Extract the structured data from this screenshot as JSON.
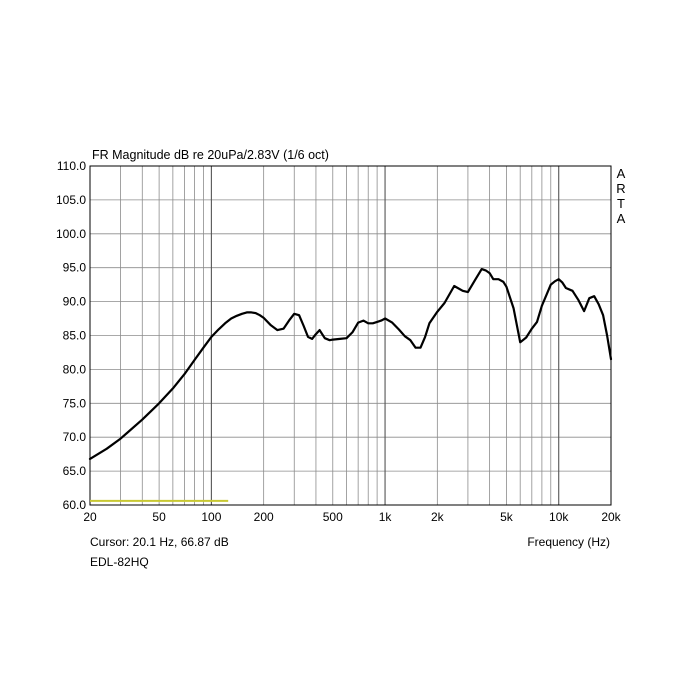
{
  "chart_data": {
    "type": "line",
    "title": "FR Magnitude dB re 20uPa/2.83V (1/6 oct)",
    "xlabel": "Frequency (Hz)",
    "ylabel": "",
    "x_scale": "log",
    "xlim": [
      20,
      20000
    ],
    "ylim": [
      60,
      110
    ],
    "grid": true,
    "y_ticks": [
      "110.0",
      "105.0",
      "100.0",
      "95.0",
      "90.0",
      "85.0",
      "80.0",
      "75.0",
      "70.0",
      "65.0",
      "60.0"
    ],
    "x_ticks": [
      {
        "value": 20,
        "label": "20"
      },
      {
        "value": 50,
        "label": "50"
      },
      {
        "value": 100,
        "label": "100"
      },
      {
        "value": 200,
        "label": "200"
      },
      {
        "value": 500,
        "label": "500"
      },
      {
        "value": 1000,
        "label": "1k"
      },
      {
        "value": 2000,
        "label": "2k"
      },
      {
        "value": 5000,
        "label": "5k"
      },
      {
        "value": 10000,
        "label": "10k"
      },
      {
        "value": 20000,
        "label": "20k"
      }
    ],
    "watermark": "ARTA",
    "cursor_readout": "Cursor: 20.1 Hz, 66.87 dB",
    "device_label": "EDL-82HQ",
    "series": [
      {
        "color": "#000000",
        "x": [
          20,
          25,
          30,
          40,
          50,
          60,
          70,
          80,
          90,
          100,
          110,
          120,
          130,
          140,
          150,
          160,
          170,
          180,
          190,
          200,
          220,
          240,
          260,
          280,
          300,
          320,
          340,
          360,
          380,
          400,
          420,
          450,
          480,
          500,
          550,
          600,
          650,
          700,
          750,
          800,
          850,
          900,
          950,
          1000,
          1100,
          1200,
          1300,
          1400,
          1500,
          1600,
          1700,
          1800,
          2000,
          2200,
          2500,
          2800,
          3000,
          3300,
          3600,
          3800,
          4000,
          4200,
          4500,
          4800,
          5000,
          5500,
          6000,
          6500,
          7000,
          7500,
          8000,
          8500,
          9000,
          9500,
          10000,
          10500,
          11000,
          12000,
          13000,
          14000,
          15000,
          16000,
          17000,
          18000,
          19000,
          20000
        ],
        "y": [
          66.8,
          68.3,
          69.8,
          72.6,
          75.0,
          77.2,
          79.3,
          81.4,
          83.2,
          84.8,
          85.9,
          86.8,
          87.5,
          87.9,
          88.2,
          88.4,
          88.4,
          88.3,
          88.0,
          87.6,
          86.5,
          85.8,
          86.0,
          87.2,
          88.2,
          88.0,
          86.4,
          84.8,
          84.5,
          85.2,
          85.8,
          84.6,
          84.3,
          84.4,
          84.5,
          84.6,
          85.5,
          86.9,
          87.2,
          86.8,
          86.8,
          87.0,
          87.2,
          87.5,
          86.9,
          85.9,
          84.9,
          84.3,
          83.2,
          83.2,
          84.8,
          86.8,
          88.5,
          89.8,
          92.3,
          91.6,
          91.4,
          93.2,
          94.8,
          94.6,
          94.2,
          93.3,
          93.3,
          92.9,
          92.2,
          89.0,
          84.0,
          84.7,
          86.0,
          87.0,
          89.4,
          91.0,
          92.5,
          93.0,
          93.3,
          92.8,
          92.0,
          91.6,
          90.2,
          88.6,
          90.5,
          90.8,
          89.6,
          88.0,
          85.0,
          81.5
        ]
      },
      {
        "color": "#c8c832",
        "x": [
          20,
          125
        ],
        "y": [
          60.6,
          60.6
        ]
      }
    ]
  }
}
